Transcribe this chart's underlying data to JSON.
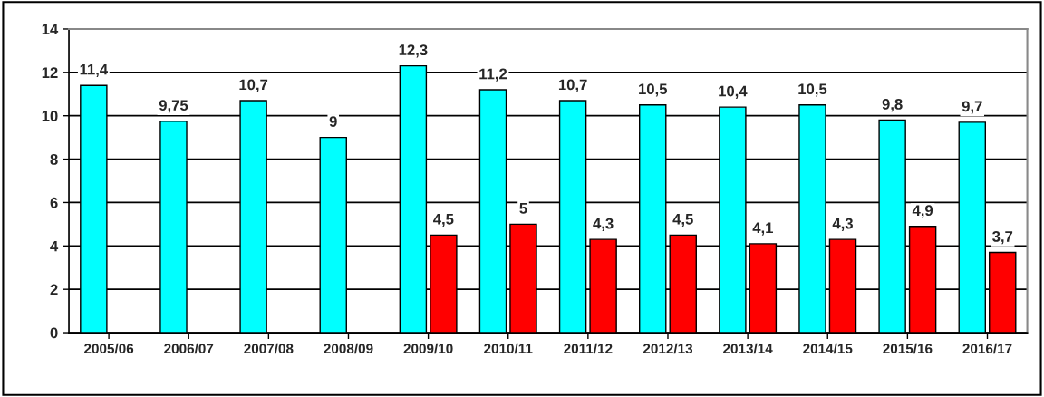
{
  "chart_data": {
    "type": "bar",
    "categories": [
      "2005/06",
      "2006/07",
      "2007/08",
      "2008/09",
      "2009/10",
      "2010/11",
      "2011/12",
      "2012/13",
      "2013/14",
      "2014/15",
      "2015/16",
      "2016/17"
    ],
    "series": [
      {
        "color": "#00ffff",
        "values": [
          11.4,
          9.75,
          10.7,
          9,
          12.3,
          11.2,
          10.7,
          10.5,
          10.4,
          10.5,
          9.8,
          9.7
        ],
        "value_labels": [
          "11,4",
          "9,75",
          "10,7",
          "9",
          "12,3",
          "11,2",
          "10,7",
          "10,5",
          "10,4",
          "10,5",
          "9,8",
          "9,7"
        ]
      },
      {
        "color": "#ff0000",
        "values": [
          null,
          null,
          null,
          null,
          4.5,
          5,
          4.3,
          4.5,
          4.1,
          4.3,
          4.9,
          3.7
        ],
        "value_labels": [
          null,
          null,
          null,
          null,
          "4,5",
          "5",
          "4,3",
          "4,5",
          "4,1",
          "4,3",
          "4,9",
          "3,7"
        ]
      }
    ],
    "ylim": [
      0,
      14
    ],
    "yticks": [
      0,
      2,
      4,
      6,
      8,
      10,
      12,
      14
    ],
    "grid": "y",
    "legend": false
  }
}
